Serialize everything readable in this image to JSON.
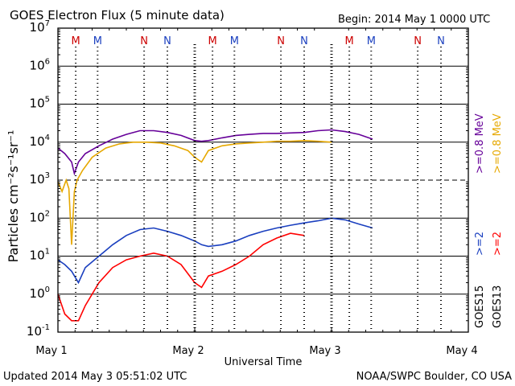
{
  "chart_data": {
    "type": "line",
    "title": "GOES Electron Flux (5 minute data)",
    "begin_label": "Begin: 2014 May 1 0000 UTC",
    "xlabel": "Universal Time",
    "ylabel": "Particles cm⁻²s⁻¹sr⁻¹",
    "y_scale": "log",
    "ylim": [
      0.1,
      10000000
    ],
    "y_ticks": [
      {
        "base": "10",
        "exp": "7",
        "value": 10000000
      },
      {
        "base": "10",
        "exp": "6",
        "value": 1000000
      },
      {
        "base": "10",
        "exp": "5",
        "value": 100000
      },
      {
        "base": "10",
        "exp": "4",
        "value": 10000
      },
      {
        "base": "10",
        "exp": "3",
        "value": 1000
      },
      {
        "base": "10",
        "exp": "2",
        "value": 100
      },
      {
        "base": "10",
        "exp": "1",
        "value": 10
      },
      {
        "base": "10",
        "exp": "0",
        "value": 1
      },
      {
        "base": "10",
        "exp": "-1",
        "value": 0.1
      }
    ],
    "x_unit": "days since 2014 May 1 00:00 UTC",
    "xlim": [
      0,
      3
    ],
    "x_ticks": [
      {
        "label": "May 1",
        "value": 0
      },
      {
        "label": "May 2",
        "value": 1
      },
      {
        "label": "May 3",
        "value": 2
      },
      {
        "label": "May 4",
        "value": 3
      }
    ],
    "grid": "horizontal at each decade, dashed at 10^3",
    "dashed_reference": 1000,
    "local_noon_markers": [
      {
        "label": "M",
        "color": "#cc0000",
        "x": 0.13
      },
      {
        "label": "M",
        "color": "#1a3fbf",
        "x": 0.29
      },
      {
        "label": "N",
        "color": "#cc0000",
        "x": 0.63
      },
      {
        "label": "N",
        "color": "#1a3fbf",
        "x": 0.8
      },
      {
        "label": "M",
        "color": "#cc0000",
        "x": 1.13
      },
      {
        "label": "M",
        "color": "#1a3fbf",
        "x": 1.29
      },
      {
        "label": "N",
        "color": "#cc0000",
        "x": 1.63
      },
      {
        "label": "N",
        "color": "#1a3fbf",
        "x": 1.8
      },
      {
        "label": "M",
        "color": "#cc0000",
        "x": 2.13
      },
      {
        "label": "M",
        "color": "#1a3fbf",
        "x": 2.29
      },
      {
        "label": "N",
        "color": "#cc0000",
        "x": 2.63
      },
      {
        "label": "N",
        "color": "#1a3fbf",
        "x": 2.8
      }
    ],
    "legend_position": "right",
    "legend": {
      "energy_top": [
        {
          "label": ">=0.8 MeV",
          "color": "#660099"
        },
        {
          "label": ">=0.8 MeV",
          "color": "#e6a800"
        }
      ],
      "energy_bottom": [
        {
          "label": ">=2",
          "color": "#1a3fbf"
        },
        {
          "label": ">=2",
          "color": "#ff0000"
        }
      ],
      "satellites": [
        {
          "label": "GOES15",
          "color": "#000000"
        },
        {
          "label": "GOES13",
          "color": "#000000"
        }
      ]
    },
    "series": [
      {
        "name": "GOES15 >=0.8 MeV",
        "color": "#660099",
        "x": [
          0,
          0.05,
          0.1,
          0.12,
          0.15,
          0.2,
          0.3,
          0.4,
          0.5,
          0.6,
          0.7,
          0.8,
          0.9,
          1.0,
          1.05,
          1.1,
          1.2,
          1.3,
          1.4,
          1.5,
          1.6,
          1.7,
          1.8,
          1.9,
          2.0,
          2.1,
          2.2,
          2.3
        ],
        "values": [
          7000,
          5000,
          3000,
          1500,
          3000,
          5000,
          8000,
          12000,
          16000,
          20000,
          20000,
          18000,
          15000,
          11000,
          10500,
          11000,
          13000,
          15000,
          16000,
          17000,
          17000,
          17500,
          18000,
          20000,
          21000,
          19000,
          16000,
          12000
        ]
      },
      {
        "name": "GOES13 >=0.8 MeV",
        "color": "#e6a800",
        "x": [
          0,
          0.03,
          0.06,
          0.08,
          0.1,
          0.12,
          0.14,
          0.18,
          0.25,
          0.35,
          0.45,
          0.55,
          0.65,
          0.75,
          0.85,
          0.95,
          1.0,
          1.05,
          1.1,
          1.2,
          1.3,
          1.4,
          1.5,
          1.6,
          1.7,
          1.8,
          1.9,
          2.0
        ],
        "values": [
          900,
          500,
          1000,
          600,
          20,
          500,
          1000,
          1800,
          4000,
          7000,
          9000,
          10000,
          10000,
          9500,
          8000,
          6000,
          4000,
          3000,
          6000,
          8000,
          9000,
          9500,
          10000,
          10500,
          10500,
          11000,
          10500,
          10000
        ]
      },
      {
        "name": "GOES15 >=2 MeV",
        "color": "#1a3fbf",
        "x": [
          0,
          0.05,
          0.1,
          0.15,
          0.2,
          0.3,
          0.4,
          0.5,
          0.6,
          0.7,
          0.8,
          0.9,
          1.0,
          1.05,
          1.1,
          1.2,
          1.3,
          1.4,
          1.5,
          1.6,
          1.7,
          1.8,
          1.9,
          2.0,
          2.1,
          2.2,
          2.3
        ],
        "values": [
          8,
          6,
          4,
          2,
          5,
          10,
          20,
          35,
          50,
          55,
          45,
          35,
          25,
          20,
          18,
          20,
          25,
          35,
          45,
          55,
          65,
          75,
          85,
          100,
          90,
          70,
          55
        ]
      },
      {
        "name": "GOES13 >=2 MeV",
        "color": "#ff0000",
        "x": [
          0,
          0.05,
          0.1,
          0.15,
          0.2,
          0.3,
          0.4,
          0.5,
          0.6,
          0.7,
          0.8,
          0.9,
          1.0,
          1.05,
          1.1,
          1.2,
          1.3,
          1.4,
          1.5,
          1.6,
          1.7,
          1.8
        ],
        "values": [
          1,
          0.3,
          0.2,
          0.2,
          0.5,
          2,
          5,
          8,
          10,
          12,
          10,
          6,
          2,
          1.5,
          3,
          4,
          6,
          10,
          20,
          30,
          40,
          35
        ]
      }
    ]
  },
  "footer": {
    "updated": "Updated 2014 May  3 05:51:02 UTC",
    "credit": "NOAA/SWPC Boulder, CO USA"
  }
}
